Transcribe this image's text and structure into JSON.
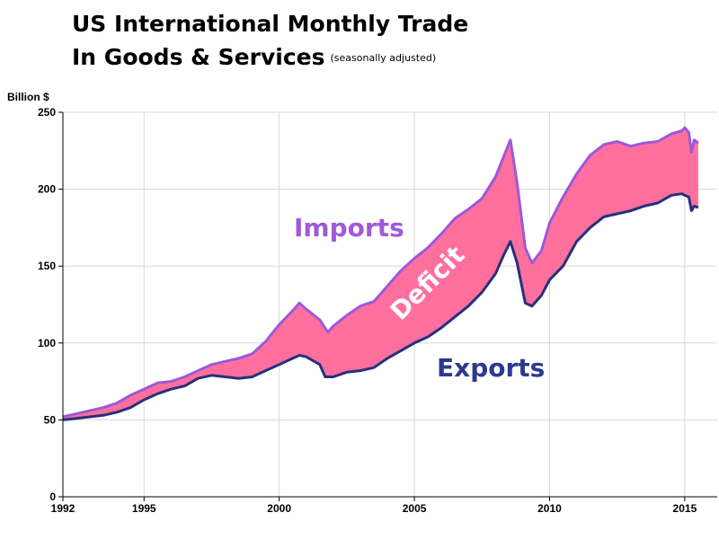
{
  "chart_data": {
    "type": "area",
    "title_line1": "US International Monthly Trade",
    "title_line2": "In Goods & Services",
    "subtitle": "(seasonally adjusted)",
    "ylabel": "Billion $",
    "xlabel": "",
    "xlim": [
      1992,
      2016.2
    ],
    "ylim": [
      0,
      250
    ],
    "x_ticks": [
      1992,
      1995,
      2000,
      2005,
      2010,
      2015
    ],
    "y_ticks": [
      0,
      50,
      100,
      150,
      200,
      250
    ],
    "grid": true,
    "colors": {
      "imports_line": "#9b59d9",
      "exports_line": "#27307a",
      "deficit_fill": "#ff6f9e",
      "grid": "#d8d8d8",
      "imports_label": "#a05ad8",
      "exports_label": "#2b3a8c",
      "deficit_label": "#ffffff"
    },
    "annotations": {
      "imports": "Imports",
      "exports": "Exports",
      "deficit": "Deficit"
    },
    "series": [
      {
        "name": "Imports",
        "points": [
          [
            1992.0,
            52
          ],
          [
            1992.5,
            54
          ],
          [
            1993.0,
            56
          ],
          [
            1993.5,
            58
          ],
          [
            1994.0,
            61
          ],
          [
            1994.5,
            66
          ],
          [
            1995.0,
            70
          ],
          [
            1995.5,
            74
          ],
          [
            1996.0,
            75
          ],
          [
            1996.5,
            78
          ],
          [
            1997.0,
            82
          ],
          [
            1997.5,
            86
          ],
          [
            1998.0,
            88
          ],
          [
            1998.5,
            90
          ],
          [
            1999.0,
            93
          ],
          [
            1999.5,
            101
          ],
          [
            2000.0,
            112
          ],
          [
            2000.5,
            121
          ],
          [
            2000.75,
            126
          ],
          [
            2001.0,
            122
          ],
          [
            2001.5,
            115
          ],
          [
            2001.8,
            107
          ],
          [
            2002.0,
            111
          ],
          [
            2002.5,
            118
          ],
          [
            2003.0,
            124
          ],
          [
            2003.5,
            127
          ],
          [
            2004.0,
            137
          ],
          [
            2004.5,
            147
          ],
          [
            2005.0,
            155
          ],
          [
            2005.5,
            162
          ],
          [
            2006.0,
            171
          ],
          [
            2006.5,
            181
          ],
          [
            2007.0,
            187
          ],
          [
            2007.5,
            194
          ],
          [
            2008.0,
            208
          ],
          [
            2008.3,
            221
          ],
          [
            2008.55,
            232
          ],
          [
            2008.8,
            204
          ],
          [
            2009.1,
            162
          ],
          [
            2009.35,
            152
          ],
          [
            2009.7,
            160
          ],
          [
            2010.0,
            178
          ],
          [
            2010.5,
            195
          ],
          [
            2011.0,
            210
          ],
          [
            2011.5,
            222
          ],
          [
            2012.0,
            229
          ],
          [
            2012.5,
            231
          ],
          [
            2013.0,
            228
          ],
          [
            2013.5,
            230
          ],
          [
            2014.0,
            231
          ],
          [
            2014.5,
            236
          ],
          [
            2014.9,
            238
          ],
          [
            2015.0,
            240
          ],
          [
            2015.15,
            237
          ],
          [
            2015.25,
            224
          ],
          [
            2015.35,
            232
          ],
          [
            2015.5,
            230
          ]
        ]
      },
      {
        "name": "Exports",
        "points": [
          [
            1992.0,
            50
          ],
          [
            1992.5,
            51
          ],
          [
            1993.0,
            52
          ],
          [
            1993.5,
            53
          ],
          [
            1994.0,
            55
          ],
          [
            1994.5,
            58
          ],
          [
            1995.0,
            63
          ],
          [
            1995.5,
            67
          ],
          [
            1996.0,
            70
          ],
          [
            1996.5,
            72
          ],
          [
            1997.0,
            77
          ],
          [
            1997.5,
            79
          ],
          [
            1998.0,
            78
          ],
          [
            1998.5,
            77
          ],
          [
            1999.0,
            78
          ],
          [
            1999.5,
            82
          ],
          [
            2000.0,
            86
          ],
          [
            2000.5,
            90
          ],
          [
            2000.75,
            92
          ],
          [
            2001.0,
            91
          ],
          [
            2001.5,
            86
          ],
          [
            2001.7,
            78
          ],
          [
            2002.0,
            78
          ],
          [
            2002.5,
            81
          ],
          [
            2003.0,
            82
          ],
          [
            2003.5,
            84
          ],
          [
            2004.0,
            90
          ],
          [
            2004.5,
            95
          ],
          [
            2005.0,
            100
          ],
          [
            2005.5,
            104
          ],
          [
            2006.0,
            110
          ],
          [
            2006.5,
            117
          ],
          [
            2007.0,
            124
          ],
          [
            2007.5,
            133
          ],
          [
            2008.0,
            145
          ],
          [
            2008.3,
            157
          ],
          [
            2008.55,
            166
          ],
          [
            2008.8,
            152
          ],
          [
            2009.1,
            126
          ],
          [
            2009.35,
            124
          ],
          [
            2009.7,
            131
          ],
          [
            2010.0,
            141
          ],
          [
            2010.5,
            150
          ],
          [
            2011.0,
            166
          ],
          [
            2011.5,
            175
          ],
          [
            2012.0,
            182
          ],
          [
            2012.5,
            184
          ],
          [
            2013.0,
            186
          ],
          [
            2013.5,
            189
          ],
          [
            2014.0,
            191
          ],
          [
            2014.5,
            196
          ],
          [
            2014.9,
            197
          ],
          [
            2015.0,
            196
          ],
          [
            2015.15,
            195
          ],
          [
            2015.25,
            186
          ],
          [
            2015.35,
            189
          ],
          [
            2015.5,
            188
          ]
        ]
      }
    ]
  }
}
